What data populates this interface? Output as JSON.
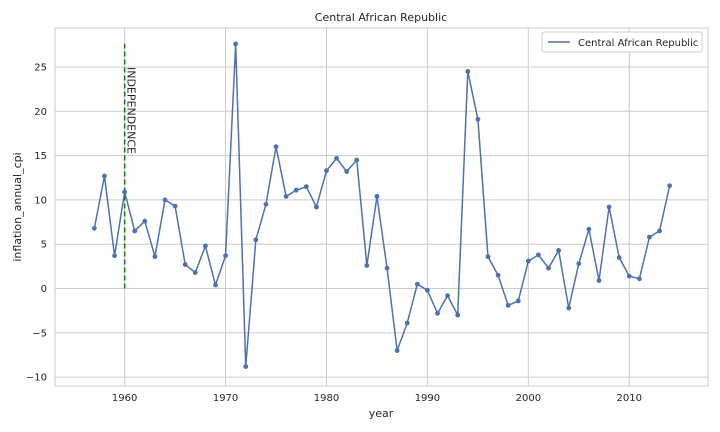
{
  "chart_data": {
    "type": "line",
    "title": "Central African Republic",
    "xlabel": "year",
    "ylabel": "inflation_annual_cpi",
    "xlim": [
      1953.1,
      2017.8
    ],
    "ylim": [
      -11.0,
      29.4
    ],
    "xticks": [
      1960,
      1970,
      1980,
      1990,
      2000,
      2010
    ],
    "yticks": [
      -10,
      -5,
      0,
      5,
      10,
      15,
      20,
      25
    ],
    "grid": true,
    "legend_position": "top-right",
    "series": [
      {
        "name": "Central African Republic",
        "color": "#4c72b0",
        "x": [
          1957,
          1958,
          1959,
          1960,
          1961,
          1962,
          1963,
          1964,
          1965,
          1966,
          1967,
          1968,
          1969,
          1970,
          1971,
          1972,
          1973,
          1974,
          1975,
          1976,
          1977,
          1978,
          1979,
          1980,
          1981,
          1982,
          1983,
          1984,
          1985,
          1986,
          1987,
          1988,
          1989,
          1990,
          1991,
          1992,
          1993,
          1994,
          1995,
          1996,
          1997,
          1998,
          1999,
          2000,
          2001,
          2002,
          2003,
          2004,
          2005,
          2006,
          2007,
          2008,
          2009,
          2010,
          2011,
          2012,
          2013,
          2014
        ],
        "y": [
          6.8,
          12.7,
          3.7,
          10.9,
          6.5,
          7.6,
          3.6,
          10.0,
          9.3,
          2.7,
          1.8,
          4.8,
          0.4,
          3.7,
          27.6,
          -8.8,
          5.5,
          9.5,
          16.0,
          10.4,
          11.1,
          11.5,
          9.2,
          13.3,
          14.7,
          13.2,
          14.5,
          2.6,
          10.4,
          2.3,
          -7.0,
          -3.9,
          0.5,
          -0.2,
          -2.8,
          -0.8,
          -3.0,
          24.5,
          19.1,
          3.6,
          1.5,
          -1.9,
          -1.4,
          3.1,
          3.8,
          2.3,
          4.3,
          -2.2,
          2.8,
          6.7,
          0.9,
          9.2,
          3.5,
          1.4,
          1.1,
          5.8,
          6.5,
          11.6
        ]
      }
    ],
    "annotation": {
      "label": "INDEPENDENCE",
      "x": 1960,
      "y_range": [
        0,
        27.6
      ],
      "line_color": "#008000",
      "line_style": "dashed"
    }
  }
}
